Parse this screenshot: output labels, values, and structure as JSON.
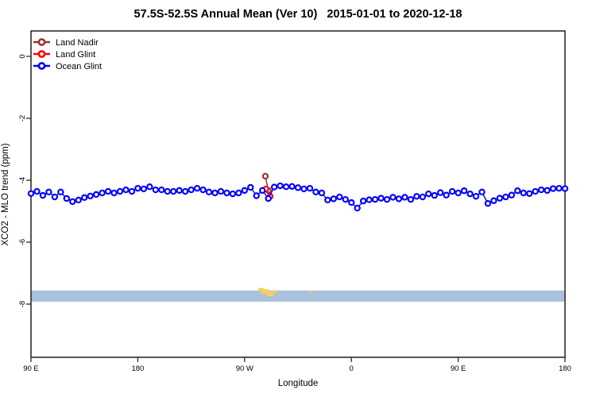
{
  "title": "57.5S-52.5S Annual Mean (Ver 10)   2015-01-01 to 2020-12-18",
  "chart_data": {
    "type": "line",
    "title": "57.5S-52.5S Annual Mean (Ver 10)   2015-01-01 to 2020-12-18",
    "xlabel": "Longitude",
    "ylabel": "XCO2 - MLO trend (ppm)",
    "x_axis": {
      "tick_labels": [
        "90 E",
        "180",
        "90 W",
        "0",
        "90 E",
        "180"
      ],
      "tick_axis_deg": [
        0,
        90,
        180,
        270,
        360,
        450
      ],
      "span_deg": 450,
      "wrap_note": "axis runs 90E eastward through 180, 90W, 0, 90E to 180"
    },
    "y_axis": {
      "ticks": [
        0,
        -2,
        -4,
        -6,
        -8
      ],
      "ylim": [
        -9.6,
        0.8
      ],
      "grid": false
    },
    "legend": [
      {
        "label": "Land Nadir",
        "color": "#993333"
      },
      {
        "label": "Land Glint",
        "color": "#ff0000"
      },
      {
        "label": "Ocean Glint",
        "color": "#0000ff"
      }
    ],
    "series": [
      {
        "name": "Land Nadir",
        "color": "#993333",
        "x_axis_deg": [
          197.5,
          200
        ],
        "values": [
          -3.87,
          -4.33
        ]
      },
      {
        "name": "Land Glint",
        "color": "#ff0000",
        "x_axis_deg": [
          198,
          201.5
        ],
        "values": [
          -4.28,
          -4.52
        ]
      },
      {
        "name": "Ocean Glint",
        "color": "#0000ff",
        "x_start_deg": 0,
        "x_step_deg": 5,
        "n_points": 91,
        "values": [
          -4.43,
          -4.36,
          -4.49,
          -4.38,
          -4.54,
          -4.38,
          -4.59,
          -4.69,
          -4.64,
          -4.56,
          -4.51,
          -4.46,
          -4.41,
          -4.36,
          -4.41,
          -4.36,
          -4.31,
          -4.36,
          -4.26,
          -4.28,
          -4.21,
          -4.31,
          -4.31,
          -4.36,
          -4.36,
          -4.33,
          -4.36,
          -4.31,
          -4.26,
          -4.31,
          -4.38,
          -4.41,
          -4.36,
          -4.41,
          -4.44,
          -4.41,
          -4.33,
          -4.23,
          -4.5,
          -4.33,
          -4.59,
          -4.22,
          -4.18,
          -4.21,
          -4.2,
          -4.24,
          -4.28,
          -4.26,
          -4.38,
          -4.41,
          -4.64,
          -4.6,
          -4.54,
          -4.62,
          -4.72,
          -4.9,
          -4.67,
          -4.63,
          -4.62,
          -4.58,
          -4.62,
          -4.55,
          -4.6,
          -4.55,
          -4.62,
          -4.52,
          -4.54,
          -4.44,
          -4.49,
          -4.4,
          -4.48,
          -4.36,
          -4.41,
          -4.34,
          -4.44,
          -4.52,
          -4.38,
          -4.75,
          -4.66,
          -4.58,
          -4.54,
          -4.48,
          -4.34,
          -4.41,
          -4.43,
          -4.36,
          -4.31,
          -4.33,
          -4.27,
          -4.26,
          -4.27
        ]
      }
    ],
    "map_strip": {
      "band_color": "#aac1dd",
      "land_color": "#f6cf63",
      "band_ppm": [
        -7.56,
        -7.92
      ],
      "land_marks": [
        {
          "t": [
            191.5,
            196.5
          ],
          "ppm": [
            -7.48,
            -7.58
          ]
        },
        {
          "t": [
            194.0,
            201.0
          ],
          "ppm": [
            -7.52,
            -7.68
          ]
        },
        {
          "t": [
            198.5,
            204.5
          ],
          "ppm": [
            -7.6,
            -7.75
          ]
        },
        {
          "t": [
            204.0,
            207.5
          ],
          "ppm": [
            -7.55,
            -7.64
          ]
        },
        {
          "t": [
            234.5,
            236.5
          ],
          "ppm": [
            -7.58,
            -7.65
          ]
        }
      ]
    }
  }
}
